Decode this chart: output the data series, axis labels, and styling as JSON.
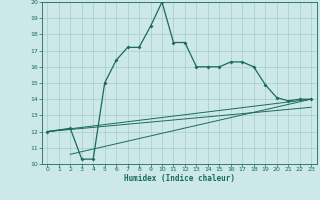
{
  "title": "",
  "xlabel": "Humidex (Indice chaleur)",
  "bg_color": "#cce8e8",
  "line_color": "#1a6b5a",
  "grid_color": "#aacccc",
  "xlim": [
    -0.5,
    23.5
  ],
  "ylim": [
    10,
    20
  ],
  "yticks": [
    10,
    11,
    12,
    13,
    14,
    15,
    16,
    17,
    18,
    19,
    20
  ],
  "xticks": [
    0,
    1,
    2,
    3,
    4,
    5,
    6,
    7,
    8,
    9,
    10,
    11,
    12,
    13,
    14,
    15,
    16,
    17,
    18,
    19,
    20,
    21,
    22,
    23
  ],
  "series1_x": [
    0,
    2,
    3,
    4,
    5,
    6,
    7,
    8,
    9,
    10,
    11,
    12,
    13,
    14,
    15,
    16,
    17,
    18,
    19,
    20,
    21,
    22,
    23
  ],
  "series1_y": [
    12.0,
    12.2,
    10.3,
    10.3,
    15.0,
    16.4,
    17.2,
    17.2,
    18.5,
    20.0,
    17.5,
    17.5,
    16.0,
    16.0,
    16.0,
    16.3,
    16.3,
    16.0,
    14.9,
    14.1,
    13.9,
    14.0,
    14.0
  ],
  "line1_x": [
    2,
    23
  ],
  "line1_y": [
    10.6,
    14.0
  ],
  "line2_x": [
    0,
    23
  ],
  "line2_y": [
    12.0,
    14.0
  ],
  "line3_x": [
    0,
    23
  ],
  "line3_y": [
    12.0,
    13.5
  ]
}
